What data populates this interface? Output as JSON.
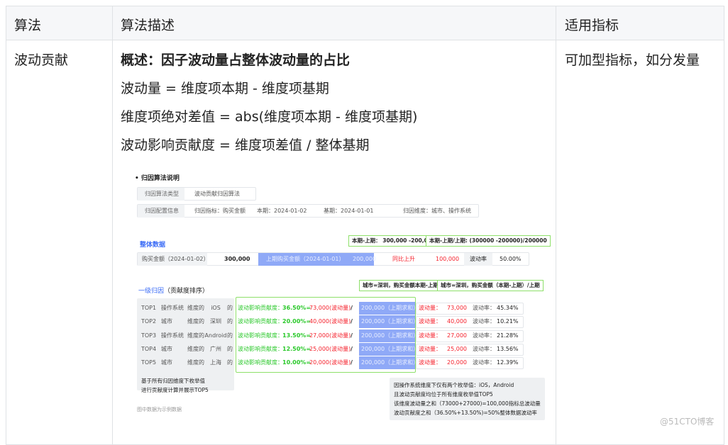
{
  "table": {
    "headers": [
      "算法",
      "算法描述",
      "适用指标"
    ],
    "row": {
      "algorithm": "波动贡献",
      "summary": "概述：因子波动量占整体波动量的占比",
      "lines": [
        "波动量 = 维度项本期 - 维度项基期",
        "维度项绝对差值 = abs(维度项本期 - 维度项基期)",
        "波动影响贡献度 = 维度项差值 / 整体基期"
      ],
      "metric": "可加型指标，如分发量"
    }
  },
  "figure": {
    "title": "归因算法说明",
    "algo_type_label": "归因算法类型",
    "algo_type_value": "波动贡献归因算法",
    "config_label": "归因配置信息",
    "config_metric": "归因指标：购买金额",
    "config_current": "本期：2024-01-02",
    "config_base": "基期：2024-01-01",
    "config_dims": "归因维度：城市、操作系统",
    "overall_title": "整体数据",
    "overall_note1": "本期-上期： 300,000 -200,000",
    "overall_note2": "本期-上期/上期: (300000 -200000)/200000",
    "overall": {
      "label": "购买金额（2024-01-02）",
      "value": "300,000",
      "prev_label": "上期购买金额（2024-01-01）",
      "prev_value": "200,000",
      "trend": "同比上升",
      "diff": "100,000",
      "rate_label": "波动率",
      "rate": "50.00%"
    },
    "level1_title": "一级归因",
    "level1_sub": "（贡献度排序）",
    "level1_note1": "城市=深圳，购买金额本期-上期",
    "level1_note2": "城市=深圳，购买金额（本期-上期）/上期",
    "rows": [
      {
        "rank": "TOP1",
        "dim": "操作系统",
        "mid": "维度的",
        "val": "iOS",
        "of": "的",
        "contrib_label": "波动影响贡献度：",
        "pct": "36.50%=",
        "amount": "73,000(波动量)",
        "slash": "/",
        "base": "200,000（上期求和）",
        "vol_label": "波动量：",
        "vol": "73,000",
        "rate_label": "波动率：",
        "rate": "45.34%"
      },
      {
        "rank": "TOP2",
        "dim": "城市",
        "mid": "维度的",
        "val": "深圳",
        "of": "的",
        "contrib_label": "波动影响贡献度：",
        "pct": "20.00%=",
        "amount": "40,000(波动量)",
        "slash": "/",
        "base": "200,000（上期求和）",
        "vol_label": "波动量：",
        "vol": "40,000",
        "rate_label": "波动率：",
        "rate": "10.21%"
      },
      {
        "rank": "TOP3",
        "dim": "操作系统",
        "mid": "维度的",
        "val": "Android",
        "of": "的",
        "contrib_label": "波动影响贡献度：",
        "pct": "13.50%=",
        "amount": "27,000(波动量)",
        "slash": "/",
        "base": "200,000（上期求和）",
        "vol_label": "波动量：",
        "vol": "27,000",
        "rate_label": "波动率：",
        "rate": "21.28%"
      },
      {
        "rank": "TOP4",
        "dim": "城市",
        "mid": "维度的",
        "val": "广州",
        "of": "的",
        "contrib_label": "波动影响贡献度：",
        "pct": "12.50%=",
        "amount": "25,000(波动量)",
        "slash": "/",
        "base": "200,000（上期求和）",
        "vol_label": "波动量：",
        "vol": "25,000",
        "rate_label": "波动率：",
        "rate": "13.56%"
      },
      {
        "rank": "TOP5",
        "dim": "城市",
        "mid": "维度的",
        "val": "上海",
        "of": "的",
        "contrib_label": "波动影响贡献度：",
        "pct": "10.00%=",
        "amount": "20,000(波动量)",
        "slash": "/",
        "base": "200,000（上期求和）",
        "vol_label": "波动量：",
        "vol": "20,000",
        "rate_label": "波动率：",
        "rate": "12.39%"
      }
    ],
    "left_note": [
      "基于所有归因维度下枚举值",
      "进行贡献度计算并展示TOP5"
    ],
    "right_note": [
      "因操作系统维度下仅有两个枚举值：iOS，Android",
      "且波动贡献度均位于所有维度枚举值TOP5",
      "该维度波动量之和（73000+27000)=100,000指标总波动量",
      "波动贡献度之和（36.50%+13.50%)=50%整体数据波动率"
    ],
    "footnote": "图中数据为示例数据"
  },
  "watermark": "@51CTO博客"
}
